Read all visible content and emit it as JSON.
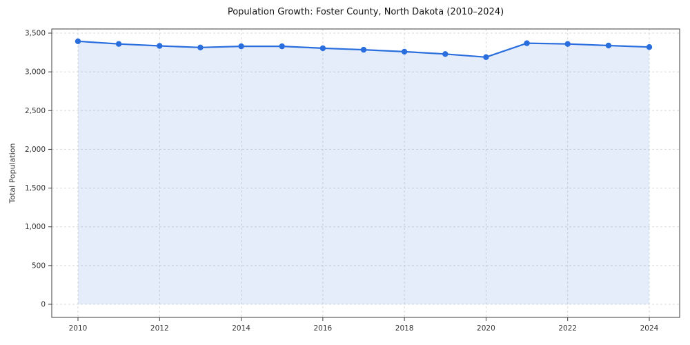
{
  "page": {
    "background": "#ffffff"
  },
  "chart_data": {
    "type": "area",
    "title": "Population Growth: Foster County, North Dakota (2010–2024)",
    "xlabel": "",
    "ylabel": "Total Population",
    "x": [
      2010,
      2011,
      2012,
      2013,
      2014,
      2015,
      2016,
      2017,
      2018,
      2019,
      2020,
      2021,
      2022,
      2023,
      2024
    ],
    "series": [
      {
        "name": "Total Population",
        "values": [
          3395,
          3360,
          3335,
          3315,
          3330,
          3330,
          3305,
          3285,
          3260,
          3230,
          3190,
          3370,
          3360,
          3340,
          3320
        ]
      }
    ],
    "ylim": [
      0,
      3500
    ],
    "ytick_step": 500,
    "xticks": [
      2010,
      2012,
      2014,
      2016,
      2018,
      2020,
      2022,
      2024
    ],
    "grid": true,
    "grid_style": "dashed",
    "legend": false,
    "marker": "circle",
    "colors": {
      "line": "#2a6ede",
      "fill": "#2a6ede",
      "fill_opacity": 0.12,
      "grid": "#d9d9d9",
      "axis": "#3c3c3c",
      "text": "#333333",
      "title": "#111111"
    }
  }
}
